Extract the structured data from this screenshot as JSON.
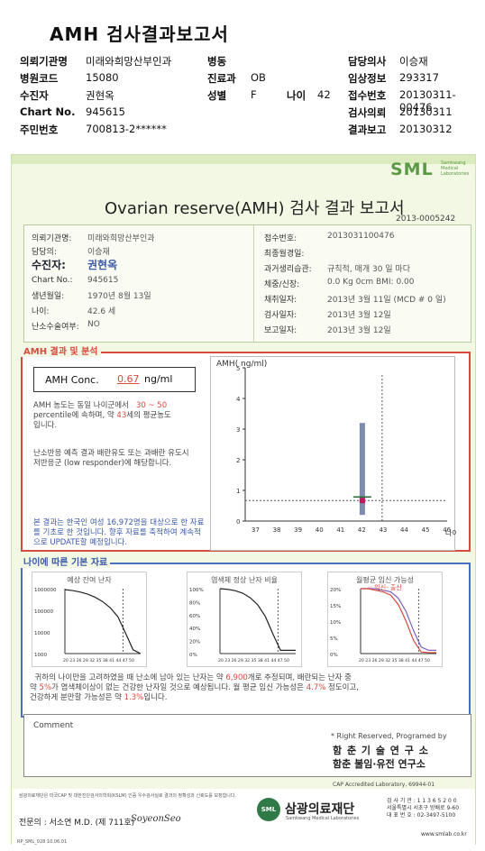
{
  "header": {
    "title": "AMH 검사결과보고서",
    "rows": [
      {
        "l1": "의뢰기관명",
        "v1": "미래와희망산부인과",
        "l2": "병동",
        "v2": "",
        "l3": "",
        "v3": "",
        "l4": "담당의사",
        "v4": "이승재"
      },
      {
        "l1": "병원코드",
        "v1": "15080",
        "l2": "진료과",
        "v2": "OB",
        "l3": "",
        "v3": "",
        "l4": "임상정보",
        "v4": "293317"
      },
      {
        "l1": "수진자",
        "v1": "권현옥",
        "l2": "성별",
        "v2": "F",
        "l3": "나이",
        "v3": "42",
        "l4": "접수번호",
        "v4": "20130311-00476"
      },
      {
        "l1": "Chart No.",
        "v1": "945615",
        "l2": "",
        "v2": "",
        "l3": "",
        "v3": "",
        "l4": "검사의뢰",
        "v4": "20130311"
      },
      {
        "l1": "주민번호",
        "v1": "700813-2******",
        "l2": "",
        "v2": "",
        "l3": "",
        "v3": "",
        "l4": "결과보고",
        "v4": "20130312"
      }
    ]
  },
  "report": {
    "logo": "SML",
    "logo_sub": "Samkwang Medical Laboratories",
    "title": "Ovarian reserve(AMH) 검사 결과 보고서",
    "doc_no": "2013-0005242",
    "info_left": [
      {
        "label": "의뢰기관명:",
        "value": "미래와희망산부인과"
      },
      {
        "label": "담당의:",
        "value": "이승재"
      },
      {
        "label": "수진자:",
        "value": "권현옥"
      },
      {
        "label": "Chart No.:",
        "value": "945615"
      },
      {
        "label": "생년월일:",
        "value": "1970년 8월 13일"
      },
      {
        "label": "나이:",
        "value": "42.6 세"
      },
      {
        "label": "난소수술여부:",
        "value": "NO"
      }
    ],
    "info_right": [
      {
        "label": "접수번호:",
        "value": "2013031100476"
      },
      {
        "label": "최종월경일:",
        "value": ""
      },
      {
        "label": "과거생리습관:",
        "value": "규칙적,  매개    30 일 마다"
      },
      {
        "label": "체중/신장:",
        "value": "0.0 Kg          0cm     BMI:    0.00"
      },
      {
        "label": "채취일자:",
        "value": "2013년 3월 11일     (MCD #   0 일)"
      },
      {
        "label": "검사일자:",
        "value": "2013년 3월 12일"
      },
      {
        "label": "보고일자:",
        "value": "2013년 3월 12일"
      }
    ],
    "amh_section_title": "AMH 결과 및 분석",
    "conc_label": "AMH Conc.",
    "conc_value": "0.67",
    "conc_unit": "ng/ml",
    "para1": {
      "p1": "AMH 농도는 동일 나이군에서",
      "r1": "30 ~  50",
      "p2": "percentile에 속하며, 약",
      "r2": "43",
      "p3": "세의 평균농도",
      "p4": "입니다."
    },
    "para2": "난소반응 예측 결과 배란유도 또는 과배란 유도시 저반응군 (low responder)에 해당합니다.",
    "para3": "본 결과는 한국인 여성 16,972명을 대상으로 한 자료를 기초로 한 것입니다. 향후 자료를 축적하여 계속적으로 UPDATE할 예정입니다.",
    "age_section_title": "나이에 따른 기본 자료",
    "mini1_title": "예상 잔여 난자",
    "mini2_title": "염색체 정상 난자 비율",
    "mini3_title": "월평균 임신 가능성",
    "mini3_legend": "-: 임신-  출산",
    "summary": {
      "s1": "귀하의 나이만을 고려하였을 때 난소에 남아 있는 난자는 약",
      "r1": "6,900",
      "s2": "개로 추정되며, 배란되는 난자 중",
      "s3": "약",
      "r2": "5%",
      "s4": "가 염색체이상이 없는 건강한 난자일 것으로 예상됩니다. 월 평균 임신 가능성은",
      "r3": "4.7%",
      "s5": "정도이고,",
      "s6": "건강하게 분만할 가능성은 약",
      "r4": "1.3%",
      "s7": "입니다."
    },
    "comment_label": "Comment",
    "rights": "* Right Reserved, Programed by",
    "lab1": "함 춘  기 술  연 구 소",
    "lab2": "함춘 불임·유전 연구소",
    "cap": "CAP   Accredited   Laboratory,   69944-01",
    "foot_note": "삼광의료재단은 미국CAP 및 대한진단검사의학회(KSLM) 인증 우수검사실로 결과의 정확성과 신뢰도를 보장합니다.",
    "specialist": "전문의 : 서소연 M.D. (제 711호)",
    "signature": "SoyeonSeo",
    "foundation_badge": "SML",
    "foundation_name": "삼광의료재단",
    "foundation_sub": "Samkwang Medical Laboratories",
    "address": "검 사 기 관 : 1 1 3 6 5 2 0 0\n서울특별시 서초구 방배로 9-60\n대 표 번 호 : 02-3497-5100",
    "website": "www.smlab.co.kr",
    "form_code": "RP_SML_028  10.06.01"
  },
  "chart_data": [
    {
      "type": "bar",
      "title": "AMH( ng/ml)",
      "xlabel": "나이",
      "x": [
        37,
        38,
        39,
        40,
        41,
        42,
        43,
        44,
        45,
        46
      ],
      "ylim": [
        0,
        5
      ],
      "yticks": [
        0,
        1,
        2,
        3,
        4,
        5
      ],
      "series": [
        {
          "x": 42,
          "low": 0.2,
          "high": 3.2
        }
      ],
      "patient_point": {
        "x": 42,
        "y": 0.67
      }
    },
    {
      "type": "line",
      "title": "예상 잔여 난자",
      "x": [
        20,
        23,
        26,
        29,
        32,
        35,
        38,
        41,
        44,
        47,
        50
      ],
      "y": [
        900000,
        820000,
        700000,
        560000,
        400000,
        250000,
        130000,
        50000,
        9000,
        1500,
        800
      ],
      "yscale": "log",
      "yticks": [
        "1000000",
        "100000",
        "10000",
        "1000"
      ],
      "xticks": "20 23 26 29 32 35 38 41 44 47 50"
    },
    {
      "type": "line",
      "title": "염색체 정상 난자 비율",
      "x": [
        20,
        23,
        26,
        29,
        32,
        35,
        38,
        41,
        44,
        47,
        50
      ],
      "y": [
        100,
        99,
        97,
        93,
        86,
        75,
        57,
        30,
        5,
        5,
        5
      ],
      "yticks": [
        "100%",
        "80%",
        "60%",
        "40%",
        "20%",
        "0%"
      ],
      "xticks": "20 23 26 29 32 35 38 41 44 47 50"
    },
    {
      "type": "line",
      "title": "월평균 임신 가능성",
      "x": [
        20,
        23,
        26,
        29,
        32,
        35,
        38,
        41,
        44,
        47,
        50
      ],
      "series": [
        {
          "name": "임신",
          "values": [
            20,
            20,
            20,
            19.5,
            19,
            17,
            13,
            7,
            2,
            1,
            1
          ]
        },
        {
          "name": "출산",
          "values": [
            20,
            20,
            19.5,
            19,
            18,
            15,
            10,
            4,
            0.5,
            0.3,
            0.3
          ]
        }
      ],
      "yticks": [
        "20%",
        "15%",
        "10%",
        "5%",
        "0%"
      ],
      "xticks": "20 23 26 29 32 35 38 41 44 47 50"
    }
  ]
}
